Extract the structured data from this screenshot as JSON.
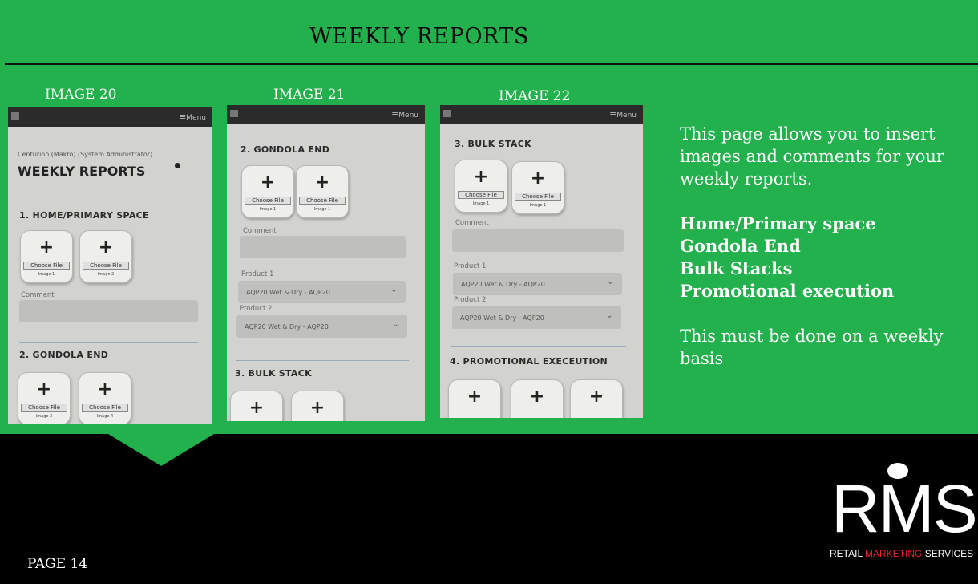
{
  "header": {
    "title": "WEEKLY REPORTS"
  },
  "images": [
    {
      "label": "IMAGE 20"
    },
    {
      "label": "IMAGE 21"
    },
    {
      "label": "IMAGE 22"
    }
  ],
  "phone_common": {
    "menu": "Menu",
    "choose_file": "Choose File",
    "comment": "Comment",
    "product_1": "Product 1",
    "product_2": "Product 2",
    "product_value": "AQP20 Wet & Dry - AQP20"
  },
  "phone1": {
    "user": "Centurion (Makro) (System Administrator)",
    "page_heading": "WEEKLY REPORTS",
    "section1": "1. HOME/PRIMARY SPACE",
    "section2": "2. GONDOLA END",
    "img_caps": [
      "Image 1",
      "Image 2",
      "Image 3",
      "Image 4"
    ]
  },
  "phone2": {
    "section1": "2. GONDOLA END",
    "section2": "3. BULK STACK",
    "img_caps": [
      "Image 1",
      "Image 1"
    ]
  },
  "phone3": {
    "section1": "3. BULK STACK",
    "section2": "4. PROMOTIONAL EXECEUTION",
    "img_caps": [
      "Image 1",
      "Image 1"
    ]
  },
  "description": {
    "intro": "This page allows you to insert images and comments for your weekly reports.",
    "items": [
      "Home/Primary space",
      "Gondola End",
      "Bulk Stacks",
      "Promotional execution"
    ],
    "note": "This must be done on a weekly basis"
  },
  "footer": {
    "page": "PAGE 14",
    "logo_letters": "RMS",
    "tag_retail": "RETAIL ",
    "tag_marketing": "MARKETING",
    "tag_services": " SERVICES"
  },
  "colors": {
    "green": "#22b14c",
    "black": "#000000",
    "accent_red": "#e0262a"
  }
}
